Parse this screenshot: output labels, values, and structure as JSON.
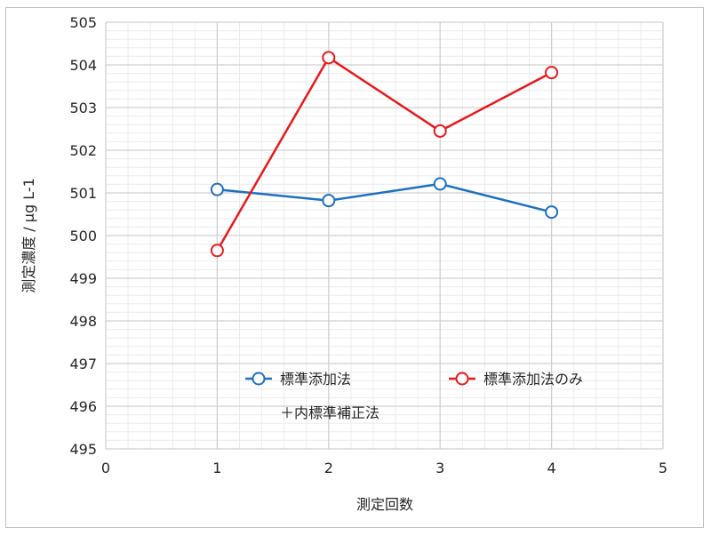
{
  "chart_data": {
    "type": "line",
    "xlabel": "測定回数",
    "ylabel": "測定濃度 / μg L-1",
    "xlim": [
      0,
      5
    ],
    "ylim": [
      495,
      505
    ],
    "x_ticks": [
      "0",
      "1",
      "2",
      "3",
      "4",
      "5"
    ],
    "y_ticks": [
      "495",
      "496",
      "497",
      "498",
      "499",
      "500",
      "501",
      "502",
      "503",
      "504",
      "505"
    ],
    "grid": true,
    "legend_position": "inside-bottom",
    "series": [
      {
        "name_lines": [
          "標準添加法",
          "＋内標準補正法"
        ],
        "color": "#1f6fc0",
        "marker": "open-circle",
        "x": [
          1,
          2,
          3,
          4
        ],
        "y": [
          501.08,
          500.82,
          501.21,
          500.55
        ]
      },
      {
        "name_lines": [
          "標準添加法のみ"
        ],
        "color": "#e8191c",
        "marker": "open-circle",
        "x": [
          1,
          2,
          3,
          4
        ],
        "y": [
          499.65,
          504.17,
          502.45,
          503.82
        ]
      }
    ]
  }
}
